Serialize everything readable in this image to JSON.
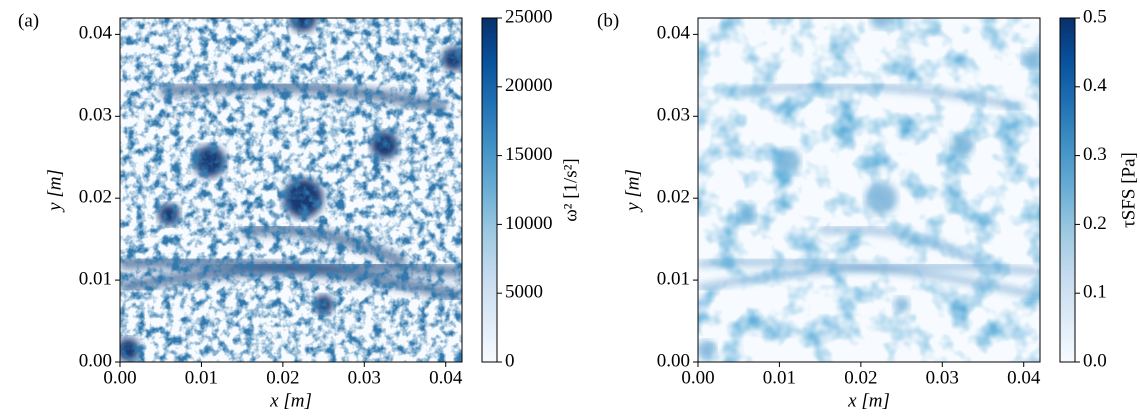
{
  "chart_data": [
    {
      "type": "heatmap",
      "panel": "(a)",
      "xlabel": "x [m]",
      "ylabel": "y [m]",
      "colorbar_label": "ω² [1/s²]",
      "colormap": "Blues",
      "xlim": [
        0,
        0.042
      ],
      "ylim": [
        0,
        0.042
      ],
      "xticks": [
        {
          "value": 0,
          "label": "0.00"
        },
        {
          "value": 0.01,
          "label": "0.01"
        },
        {
          "value": 0.02,
          "label": "0.02"
        },
        {
          "value": 0.03,
          "label": "0.03"
        },
        {
          "value": 0.04,
          "label": "0.04"
        }
      ],
      "yticks": [
        {
          "value": 0,
          "label": "0.00"
        },
        {
          "value": 0.01,
          "label": "0.01"
        },
        {
          "value": 0.02,
          "label": "0.02"
        },
        {
          "value": 0.03,
          "label": "0.03"
        },
        {
          "value": 0.04,
          "label": "0.04"
        }
      ],
      "clim": [
        0,
        25000
      ],
      "cticks": [
        0,
        5000,
        10000,
        15000,
        20000,
        25000
      ]
    },
    {
      "type": "heatmap",
      "panel": "(b)",
      "xlabel": "x [m]",
      "ylabel": "y [m]",
      "colorbar_label": "τSFS [Pa]",
      "colormap": "Blues",
      "xlim": [
        0,
        0.042
      ],
      "ylim": [
        0,
        0.042
      ],
      "xticks": [
        {
          "value": 0,
          "label": "0.00"
        },
        {
          "value": 0.01,
          "label": "0.01"
        },
        {
          "value": 0.02,
          "label": "0.02"
        },
        {
          "value": 0.03,
          "label": "0.03"
        },
        {
          "value": 0.04,
          "label": "0.04"
        }
      ],
      "yticks": [
        {
          "value": 0,
          "label": "0.00"
        },
        {
          "value": 0.01,
          "label": "0.01"
        },
        {
          "value": 0.02,
          "label": "0.02"
        },
        {
          "value": 0.03,
          "label": "0.03"
        },
        {
          "value": 0.04,
          "label": "0.04"
        }
      ],
      "clim": [
        0,
        0.5
      ],
      "cticks": [
        {
          "value": 0,
          "label": "0.0"
        },
        {
          "value": 0.1,
          "label": "0.1"
        },
        {
          "value": 0.2,
          "label": "0.2"
        },
        {
          "value": 0.3,
          "label": "0.3"
        },
        {
          "value": 0.4,
          "label": "0.4"
        },
        {
          "value": 0.5,
          "label": "0.5"
        }
      ]
    }
  ]
}
